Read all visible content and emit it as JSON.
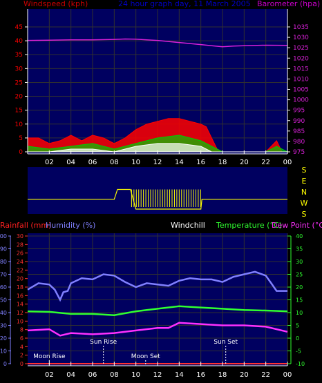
{
  "header": {
    "left_label": "Windspeed (kph)",
    "center_label": "24 hour graph day, 11 March 2005",
    "right_label": "Barometer (hpa)"
  },
  "lower_header": {
    "rainfall": "Rainfall (mm)",
    "humidity": "Humidity (%)",
    "windchill": "Windchill",
    "temperature": "Temperature (°C)",
    "dew_point": "Dew Point (°C)"
  },
  "colors": {
    "wind_gust": "#ff0000",
    "wind_avg": "#00cc00",
    "wind_min": "#ffffff",
    "barometer": "#d820d8",
    "direction": "#ffff00",
    "humidity": "#8080ff",
    "temperature": "#30ff30",
    "dew_point": "#ff30ff",
    "rainfall": "#ff3030",
    "windchill": "#ffffff",
    "plot_bg": "#000060",
    "grid": "#303030",
    "tick": "#ffffff"
  },
  "x_ticks": [
    "02",
    "04",
    "06",
    "08",
    "10",
    "12",
    "14",
    "16",
    "18",
    "20",
    "22",
    "00"
  ],
  "direction_labels": [
    "S",
    "E",
    "N",
    "W",
    "S"
  ],
  "chart_data": [
    {
      "type": "line",
      "title": "24 hour graph day, 11 March 2005",
      "xlabel": "",
      "xlim": [
        0,
        24
      ],
      "y_left": {
        "label": "Windspeed (kph)",
        "ticks": [
          "0",
          "5",
          "10",
          "15",
          "20",
          "25",
          "30",
          "35",
          "40",
          "45"
        ],
        "ylim": [
          0,
          45
        ]
      },
      "y_right": {
        "label": "Barometer (hpa)",
        "ticks": [
          "975",
          "980",
          "985",
          "990",
          "995",
          "1000",
          "1005",
          "1010",
          "1015",
          "1020",
          "1025",
          "1030",
          "1035"
        ],
        "ylim": [
          975,
          1035
        ]
      },
      "series": [
        {
          "name": "Barometer (hpa)",
          "axis": "right",
          "x": [
            0,
            2,
            4,
            6,
            8,
            9,
            10,
            11,
            12,
            13,
            14,
            15,
            16,
            17,
            18,
            19,
            20,
            22,
            24
          ],
          "values": [
            1028.5,
            1028.6,
            1028.8,
            1028.8,
            1029,
            1029.2,
            1029.1,
            1028.8,
            1028.5,
            1028,
            1027.5,
            1027,
            1026.5,
            1026,
            1025.5,
            1025.8,
            1026,
            1026.2,
            1026.1
          ]
        },
        {
          "name": "Wind gust",
          "axis": "left",
          "x": [
            0,
            1,
            2,
            3,
            4,
            5,
            6,
            7,
            8,
            9,
            10,
            11,
            12,
            13,
            14,
            15,
            16,
            16.5,
            17,
            17.5,
            18,
            20,
            22,
            22.5,
            23,
            23.5,
            24
          ],
          "values": [
            5,
            5,
            3,
            4,
            6,
            4,
            6,
            5,
            3,
            5,
            8,
            10,
            11,
            12,
            12,
            11,
            10,
            9,
            5,
            1,
            0,
            0,
            0,
            2,
            4,
            0,
            0
          ]
        },
        {
          "name": "Wind average",
          "axis": "left",
          "x": [
            0,
            2,
            4,
            6,
            8,
            10,
            12,
            14,
            16,
            17,
            18,
            22,
            23,
            24
          ],
          "values": [
            2,
            1,
            2,
            3,
            1,
            3,
            5,
            6,
            4,
            2,
            0,
            0,
            2,
            0
          ]
        },
        {
          "name": "Wind minimum",
          "axis": "left",
          "x": [
            0,
            2,
            4,
            6,
            8,
            10,
            12,
            14,
            16,
            17,
            18,
            24
          ],
          "values": [
            0,
            0,
            1,
            1,
            0,
            2,
            3,
            3,
            2,
            0,
            0,
            0
          ]
        }
      ]
    },
    {
      "type": "line",
      "title": "",
      "xlim": [
        0,
        24
      ],
      "y_categories": [
        "S",
        "E",
        "N",
        "W",
        "S"
      ],
      "series": [
        {
          "name": "Wind direction",
          "x": [
            0,
            8,
            8.3,
            8.6,
            9,
            9.5,
            10,
            16,
            16.1,
            24
          ],
          "values": [
            "E",
            "E",
            "N",
            "N",
            "N",
            "N",
            "S",
            "S",
            "E",
            "E"
          ]
        }
      ]
    },
    {
      "type": "line",
      "title": "",
      "xlim": [
        0,
        24
      ],
      "y_left_outer": {
        "label": "Humidity (%)",
        "ticks": [
          "0",
          "10",
          "20",
          "30",
          "40",
          "50",
          "60",
          "70",
          "80",
          "90",
          "100"
        ],
        "ylim": [
          0,
          100
        ]
      },
      "y_left_inner": {
        "label": "Rainfall (mm)",
        "ticks": [
          "0",
          "2",
          "4",
          "6",
          "8",
          "10",
          "12",
          "14",
          "16",
          "18",
          "20",
          "22",
          "24",
          "26",
          "28",
          "30"
        ],
        "ylim": [
          0,
          30
        ]
      },
      "y_right": {
        "label": "Temperature (°C)",
        "ticks": [
          "-10",
          "-5",
          "0",
          "5",
          "10",
          "15",
          "20",
          "25",
          "30",
          "35",
          "40"
        ],
        "ylim": [
          -10,
          40
        ]
      },
      "annotations": [
        {
          "label": "Moon Rise",
          "x": 2.0
        },
        {
          "label": "Sun Rise",
          "x": 7.0
        },
        {
          "label": "Moon Set",
          "x": 10.9
        },
        {
          "label": "Sun Set",
          "x": 18.3
        }
      ],
      "series": [
        {
          "name": "Humidity (%)",
          "axis": "left_outer",
          "x": [
            0,
            1,
            2,
            2.5,
            3,
            3.3,
            3.7,
            4,
            5,
            6,
            7,
            8,
            9,
            10,
            11,
            12,
            13,
            14,
            15,
            16,
            17,
            18,
            19,
            20,
            21,
            22,
            22.5,
            23,
            24
          ],
          "values": [
            58,
            63,
            62,
            58,
            50,
            56,
            57,
            63,
            67,
            66,
            70,
            69,
            64,
            60,
            63,
            62,
            61,
            65,
            67,
            66,
            66,
            64,
            68,
            70,
            72,
            69,
            63,
            57,
            57
          ]
        },
        {
          "name": "Temperature (°C)",
          "axis": "right",
          "x": [
            0,
            2,
            4,
            6,
            8,
            10,
            12,
            14,
            16,
            18,
            20,
            22,
            24
          ],
          "values": [
            10.5,
            10.3,
            9.5,
            9.5,
            9,
            10.5,
            11.5,
            12.5,
            12,
            11.5,
            11,
            10.8,
            10.5
          ]
        },
        {
          "name": "Dew Point (°C)",
          "axis": "right",
          "x": [
            0,
            2,
            3,
            4,
            6,
            8,
            10,
            12,
            13,
            14,
            16,
            18,
            20,
            22,
            24
          ],
          "values": [
            3,
            3.5,
            1,
            2,
            1.5,
            2,
            3,
            4,
            4,
            6,
            5.5,
            5,
            5,
            4.5,
            2.5
          ]
        },
        {
          "name": "Rainfall (mm)",
          "axis": "left_inner",
          "x": [
            0,
            24
          ],
          "values": [
            0,
            0
          ]
        }
      ]
    }
  ]
}
